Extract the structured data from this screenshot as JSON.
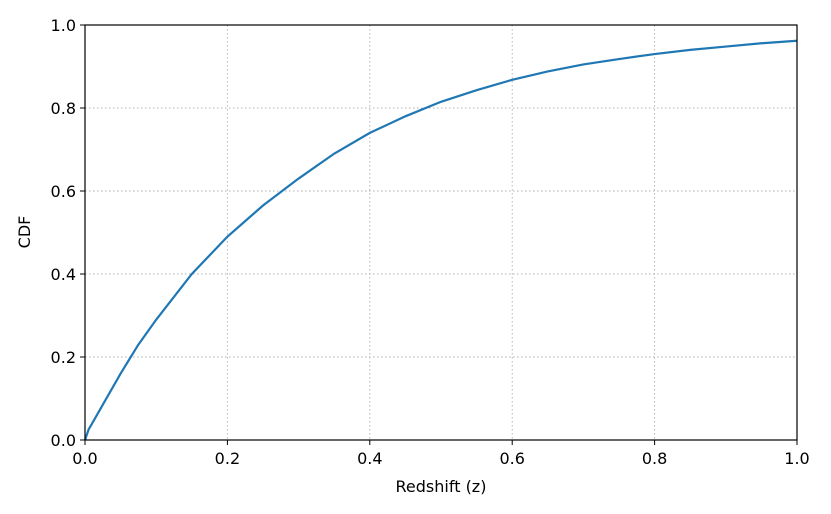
{
  "chart_data": {
    "type": "line",
    "x_label": "Redshift (z)",
    "y_label": "CDF",
    "x": [
      0,
      0.005,
      0.01,
      0.025,
      0.05,
      0.075,
      0.1,
      0.15,
      0.2,
      0.25,
      0.3,
      0.35,
      0.4,
      0.45,
      0.5,
      0.55,
      0.6,
      0.65,
      0.7,
      0.75,
      0.8,
      0.85,
      0.9,
      0.95,
      1.0
    ],
    "values": [
      0,
      0.025,
      0.04,
      0.085,
      0.16,
      0.23,
      0.29,
      0.4,
      0.49,
      0.565,
      0.63,
      0.69,
      0.74,
      0.78,
      0.815,
      0.843,
      0.868,
      0.888,
      0.905,
      0.918,
      0.93,
      0.94,
      0.948,
      0.956,
      0.962
    ],
    "color": "#1f77b4",
    "xlim": [
      0,
      1
    ],
    "ylim": [
      0,
      1
    ],
    "xticks": [
      {
        "value": 0,
        "label": "0.0"
      },
      0.2,
      0.4,
      0.6,
      0.8,
      {
        "value": 1,
        "label": "1.0"
      }
    ],
    "yticks": [
      {
        "value": 0,
        "label": "0.0"
      },
      0.2,
      0.4,
      0.6,
      0.8,
      {
        "value": 1,
        "label": "1.0"
      }
    ],
    "grid": true
  }
}
